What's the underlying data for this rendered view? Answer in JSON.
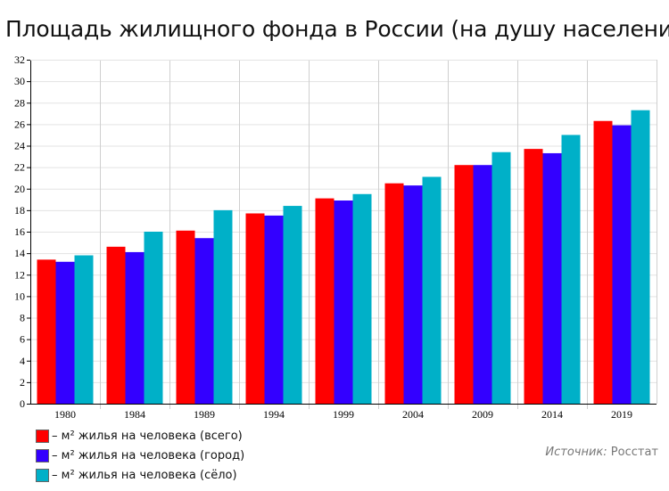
{
  "title": "Площадь жилищного фонда в России (на душу населения)",
  "source": {
    "label": "Источник:",
    "value": "Росстат"
  },
  "colors": {
    "total": "#ff0000",
    "city": "#3300ff",
    "village": "#00b0c8"
  },
  "chart_data": {
    "type": "bar",
    "title": "Площадь жилищного фонда в России (на душу населения)",
    "categories": [
      "1980",
      "1984",
      "1989",
      "1994",
      "1999",
      "2004",
      "2009",
      "2014",
      "2019"
    ],
    "series": [
      {
        "name": "– м² жилья на человека (всего)",
        "color": "#ff0000",
        "values": [
          13.4,
          14.6,
          16.1,
          17.7,
          19.1,
          20.5,
          22.2,
          23.7,
          26.3
        ]
      },
      {
        "name": "– м² жилья на человека (город)",
        "color": "#3300ff",
        "values": [
          13.2,
          14.1,
          15.4,
          17.5,
          18.9,
          20.3,
          22.2,
          23.3,
          25.9
        ]
      },
      {
        "name": "– м² жилья на человека (сёло)",
        "color": "#00b0c8",
        "values": [
          13.8,
          16.0,
          18.0,
          18.4,
          19.5,
          21.1,
          23.4,
          25.0,
          27.3
        ]
      }
    ],
    "ylim": [
      0,
      32
    ],
    "yticks": [
      0,
      2,
      4,
      6,
      8,
      10,
      12,
      14,
      16,
      18,
      20,
      22,
      24,
      26,
      28,
      30,
      32
    ],
    "grid": true,
    "legend_position": "bottom-left"
  }
}
